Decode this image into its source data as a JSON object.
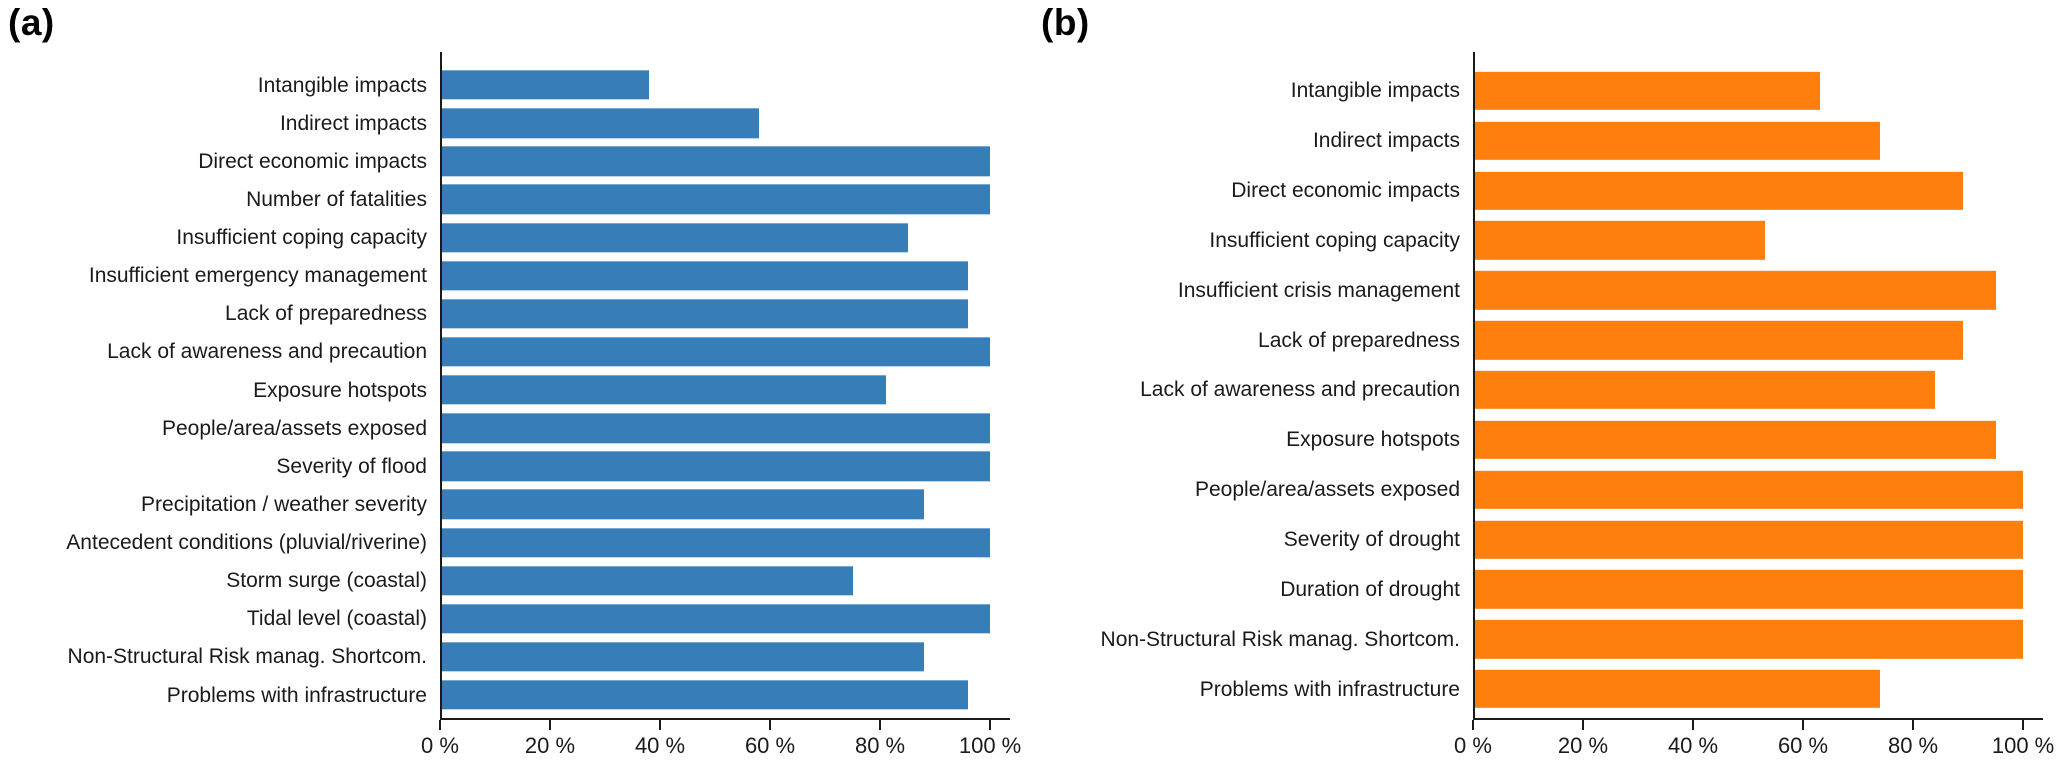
{
  "figure": {
    "background": "#ffffff",
    "axis_color": "#1a1a1a"
  },
  "chart_data": [
    {
      "type": "bar",
      "orientation": "horizontal",
      "panel_label": "(a)",
      "color": "#377eb8",
      "categories": [
        "Intangible impacts",
        "Indirect impacts",
        "Direct economic impacts",
        "Number of fatalities",
        "Insufficient coping capacity",
        "Insufficient emergency management",
        "Lack of preparedness",
        "Lack of awareness and precaution",
        "Exposure hotspots",
        "People/area/assets exposed",
        "Severity of flood",
        "Precipitation / weather severity",
        "Antecedent conditions (pluvial/riverine)",
        "Storm surge (coastal)",
        "Tidal level (coastal)",
        "Non-Structural Risk manag. Shortcom.",
        "Problems with infrastructure"
      ],
      "values": [
        38,
        58,
        100,
        100,
        85,
        96,
        96,
        100,
        81,
        100,
        100,
        88,
        100,
        75,
        100,
        88,
        96
      ],
      "xlim": [
        0,
        100
      ],
      "x_tick_values": [
        0,
        20,
        40,
        60,
        80,
        100
      ],
      "x_tick_labels": [
        "0 %",
        "20 %",
        "40 %",
        "60 %",
        "80 %",
        "100 %"
      ],
      "grid": false,
      "legend": "none"
    },
    {
      "type": "bar",
      "orientation": "horizontal",
      "panel_label": "(b)",
      "color": "#ff7f0e",
      "categories": [
        "Intangible impacts",
        "Indirect impacts",
        "Direct economic impacts",
        "Insufficient coping capacity",
        "Insufficient crisis management",
        "Lack of preparedness",
        "Lack of awareness and precaution",
        "Exposure hotspots",
        "People/area/assets exposed",
        "Severity of drought",
        "Duration of drought",
        "Non-Structural Risk manag. Shortcom.",
        "Problems with infrastructure"
      ],
      "values": [
        63,
        74,
        89,
        53,
        95,
        89,
        84,
        95,
        100,
        100,
        100,
        100,
        74
      ],
      "xlim": [
        0,
        100
      ],
      "x_tick_values": [
        0,
        20,
        40,
        60,
        80,
        100
      ],
      "x_tick_labels": [
        "0 %",
        "20 %",
        "40 %",
        "60 %",
        "80 %",
        "100 %"
      ],
      "grid": false,
      "legend": "none"
    }
  ]
}
